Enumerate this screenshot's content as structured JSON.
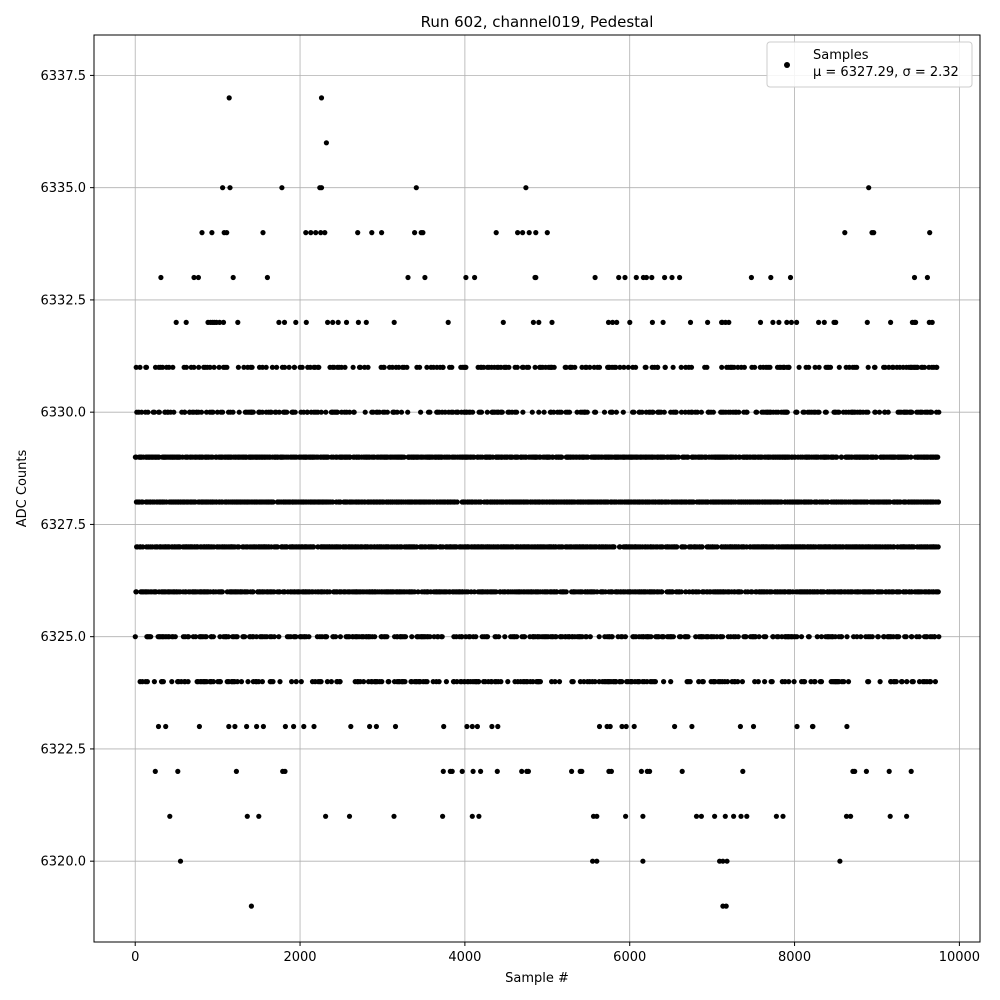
{
  "chart_data": {
    "type": "scatter",
    "title": "Run 602, channel019, Pedestal",
    "xlabel": "Sample #",
    "ylabel": "ADC Counts",
    "xlim": [
      -500,
      10250
    ],
    "ylim": [
      6318.2,
      6338.4
    ],
    "xticks": [
      0,
      2000,
      4000,
      6000,
      8000,
      10000
    ],
    "xtick_labels": [
      "0",
      "2000",
      "4000",
      "6000",
      "8000",
      "10000"
    ],
    "yticks": [
      6320.0,
      6322.5,
      6325.0,
      6327.5,
      6330.0,
      6332.5,
      6335.0,
      6337.5
    ],
    "ytick_labels": [
      "6320.0",
      "6322.5",
      "6325.0",
      "6327.5",
      "6330.0",
      "6332.5",
      "6335.0",
      "6337.5"
    ],
    "grid": true,
    "legend_position": "top-right",
    "legend": {
      "series_name": "Samples",
      "stats_text": "μ = 6327.29, σ = 2.32"
    },
    "marker_color": "#000000",
    "sample_count": 9760,
    "levels": [
      {
        "y": 6326,
        "density": 0.7,
        "ranges": [
          [
            0,
            9750
          ]
        ]
      },
      {
        "y": 6327,
        "density": 0.7,
        "ranges": [
          [
            0,
            9750
          ]
        ]
      },
      {
        "y": 6328,
        "density": 0.8,
        "ranges": [
          [
            0,
            9750
          ]
        ]
      },
      {
        "y": 6329,
        "density": 0.75,
        "ranges": [
          [
            0,
            9750
          ]
        ]
      },
      {
        "y": 6325,
        "density": 0.45,
        "ranges": [
          [
            0,
            9750
          ]
        ]
      },
      {
        "y": 6330,
        "density": 0.4,
        "ranges": [
          [
            0,
            9750
          ]
        ]
      },
      {
        "y": 6324,
        "density": 0.3,
        "ranges": [
          [
            0,
            9750
          ]
        ]
      },
      {
        "y": 6331,
        "density": 0.3,
        "ranges": [
          [
            0,
            9750
          ]
        ]
      },
      {
        "y": 6332,
        "density": 0.06,
        "ranges": [
          [
            0,
            9700
          ]
        ]
      },
      {
        "y": 6323,
        "density": 0.05,
        "ranges": [
          [
            0,
            9700
          ]
        ]
      },
      {
        "y": 6333,
        "density": 0.03,
        "ranges": [
          [
            0,
            9700
          ]
        ]
      },
      {
        "y": 6322,
        "density": 0.03,
        "ranges": [
          [
            0,
            9700
          ]
        ]
      }
    ],
    "outliers": [
      {
        "x": 1140,
        "y": 6337
      },
      {
        "x": 2260,
        "y": 6337
      },
      {
        "x": 2320,
        "y": 6336
      },
      {
        "x": 1060,
        "y": 6335
      },
      {
        "x": 1150,
        "y": 6335
      },
      {
        "x": 1780,
        "y": 6335
      },
      {
        "x": 2240,
        "y": 6335
      },
      {
        "x": 2260,
        "y": 6335
      },
      {
        "x": 3410,
        "y": 6335
      },
      {
        "x": 4740,
        "y": 6335
      },
      {
        "x": 8900,
        "y": 6335
      },
      {
        "x": 810,
        "y": 6334
      },
      {
        "x": 930,
        "y": 6334
      },
      {
        "x": 1080,
        "y": 6334
      },
      {
        "x": 1110,
        "y": 6334
      },
      {
        "x": 1550,
        "y": 6334
      },
      {
        "x": 2070,
        "y": 6334
      },
      {
        "x": 2130,
        "y": 6334
      },
      {
        "x": 2190,
        "y": 6334
      },
      {
        "x": 2250,
        "y": 6334
      },
      {
        "x": 2300,
        "y": 6334
      },
      {
        "x": 2700,
        "y": 6334
      },
      {
        "x": 2870,
        "y": 6334
      },
      {
        "x": 2990,
        "y": 6334
      },
      {
        "x": 3390,
        "y": 6334
      },
      {
        "x": 3470,
        "y": 6334
      },
      {
        "x": 3490,
        "y": 6334
      },
      {
        "x": 4380,
        "y": 6334
      },
      {
        "x": 4640,
        "y": 6334
      },
      {
        "x": 4700,
        "y": 6334
      },
      {
        "x": 4780,
        "y": 6334
      },
      {
        "x": 4860,
        "y": 6334
      },
      {
        "x": 5000,
        "y": 6334
      },
      {
        "x": 8610,
        "y": 6334
      },
      {
        "x": 8940,
        "y": 6334
      },
      {
        "x": 8960,
        "y": 6334
      },
      {
        "x": 9640,
        "y": 6334
      },
      {
        "x": 550,
        "y": 6320
      },
      {
        "x": 5550,
        "y": 6320
      },
      {
        "x": 5600,
        "y": 6320
      },
      {
        "x": 6160,
        "y": 6320
      },
      {
        "x": 7090,
        "y": 6320
      },
      {
        "x": 7130,
        "y": 6320
      },
      {
        "x": 7180,
        "y": 6320
      },
      {
        "x": 8550,
        "y": 6320
      },
      {
        "x": 1410,
        "y": 6319
      },
      {
        "x": 7130,
        "y": 6319
      },
      {
        "x": 7170,
        "y": 6319
      },
      {
        "x": 420,
        "y": 6321
      },
      {
        "x": 1360,
        "y": 6321
      },
      {
        "x": 1500,
        "y": 6321
      },
      {
        "x": 2310,
        "y": 6321
      },
      {
        "x": 2600,
        "y": 6321
      },
      {
        "x": 3140,
        "y": 6321
      },
      {
        "x": 3730,
        "y": 6321
      },
      {
        "x": 4090,
        "y": 6321
      },
      {
        "x": 4170,
        "y": 6321
      },
      {
        "x": 5560,
        "y": 6321
      },
      {
        "x": 5600,
        "y": 6321
      },
      {
        "x": 5950,
        "y": 6321
      },
      {
        "x": 6160,
        "y": 6321
      },
      {
        "x": 6810,
        "y": 6321
      },
      {
        "x": 6870,
        "y": 6321
      },
      {
        "x": 7030,
        "y": 6321
      },
      {
        "x": 7160,
        "y": 6321
      },
      {
        "x": 7260,
        "y": 6321
      },
      {
        "x": 7350,
        "y": 6321
      },
      {
        "x": 7420,
        "y": 6321
      },
      {
        "x": 7780,
        "y": 6321
      },
      {
        "x": 7860,
        "y": 6321
      },
      {
        "x": 8630,
        "y": 6321
      },
      {
        "x": 8680,
        "y": 6321
      },
      {
        "x": 9160,
        "y": 6321
      },
      {
        "x": 9360,
        "y": 6321
      }
    ]
  }
}
